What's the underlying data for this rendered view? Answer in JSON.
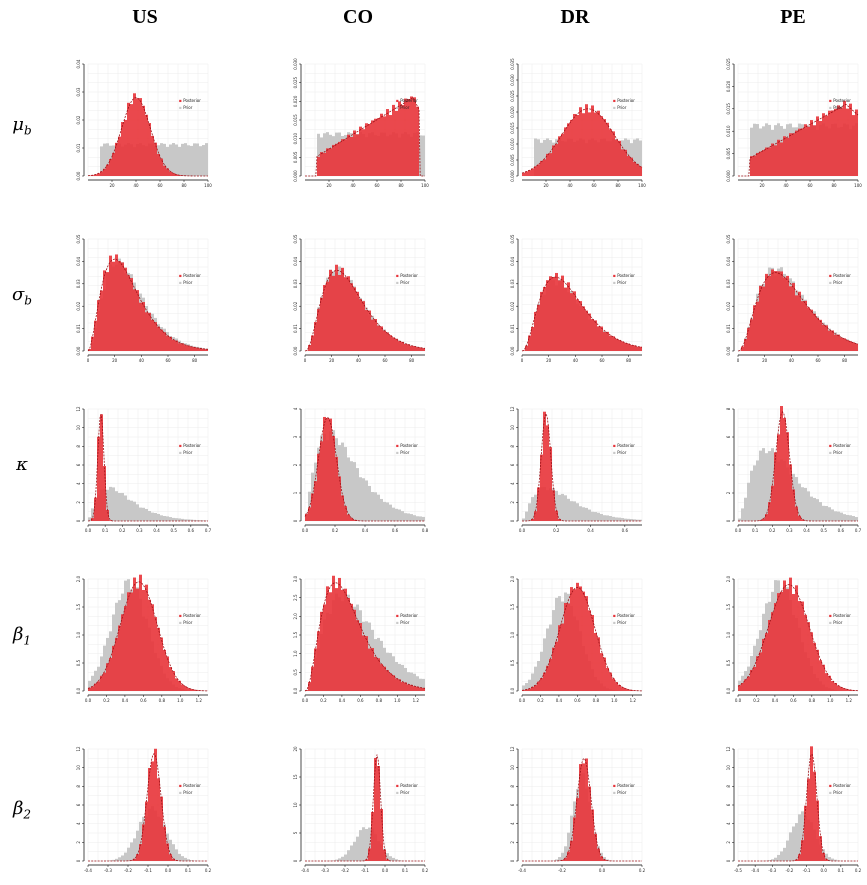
{
  "columns": [
    "US",
    "CO",
    "DR",
    "PE"
  ],
  "rows": [
    {
      "symbol": "μ",
      "sub": "b"
    },
    {
      "symbol": "σ",
      "sub": "b"
    },
    {
      "symbol": "κ",
      "sub": ""
    },
    {
      "symbol": "β",
      "sub": "1"
    },
    {
      "symbol": "β",
      "sub": "2"
    }
  ],
  "colors": {
    "posterior": "#e8343a",
    "prior": "#c8c8c8",
    "density": "#9b1016",
    "grid": "#ececec"
  },
  "legend": {
    "posterior": "Posterior",
    "prior": "Prior"
  },
  "chart_data": [
    {
      "type": "bar",
      "title": "",
      "panel": "mu_b-US",
      "xlim": [
        0,
        100
      ],
      "xticks": [
        "20",
        "40",
        "60",
        "80",
        "100"
      ],
      "ylim": [
        0,
        0.04
      ],
      "yticks": [
        "0.00",
        "0.01",
        "0.02",
        "0.03",
        "0.04"
      ],
      "series": [
        {
          "name": "Prior",
          "dist": "uniform",
          "range": [
            10,
            100
          ],
          "density": 0.011
        },
        {
          "name": "Posterior",
          "dist": "normal",
          "mean": 40,
          "sd": 12,
          "peak": 0.028
        }
      ]
    },
    {
      "type": "bar",
      "title": "",
      "panel": "mu_b-CO",
      "xlim": [
        0,
        100
      ],
      "xticks": [
        "20",
        "40",
        "60",
        "80",
        "100"
      ],
      "ylim": [
        0,
        0.03
      ],
      "yticks": [
        "0.000",
        "0.005",
        "0.010",
        "0.015",
        "0.020",
        "0.025",
        "0.030"
      ],
      "series": [
        {
          "name": "Prior",
          "dist": "uniform",
          "range": [
            10,
            100
          ],
          "density": 0.011
        },
        {
          "name": "Posterior",
          "dist": "ramp",
          "from": 10,
          "to": 95,
          "peak_at": 90,
          "peak": 0.021
        }
      ]
    },
    {
      "type": "bar",
      "title": "",
      "panel": "mu_b-DR",
      "xlim": [
        0,
        100
      ],
      "xticks": [
        "20",
        "40",
        "60",
        "80",
        "100"
      ],
      "ylim": [
        0,
        0.035
      ],
      "yticks": [
        "0.000",
        "0.005",
        "0.010",
        "0.015",
        "0.020",
        "0.025",
        "0.030",
        "0.035"
      ],
      "series": [
        {
          "name": "Prior",
          "dist": "uniform",
          "range": [
            10,
            100
          ],
          "density": 0.011
        },
        {
          "name": "Posterior",
          "dist": "normal",
          "mean": 55,
          "sd": 22,
          "peak": 0.021
        }
      ]
    },
    {
      "type": "bar",
      "title": "",
      "panel": "mu_b-PE",
      "xlim": [
        0,
        100
      ],
      "xticks": [
        "20",
        "40",
        "60",
        "80",
        "100"
      ],
      "ylim": [
        0,
        0.025
      ],
      "yticks": [
        "0.000",
        "0.005",
        "0.010",
        "0.015",
        "0.020",
        "0.025"
      ],
      "series": [
        {
          "name": "Prior",
          "dist": "uniform",
          "range": [
            10,
            100
          ],
          "density": 0.011
        },
        {
          "name": "Posterior",
          "dist": "ramp",
          "from": 10,
          "to": 100,
          "peak_at": 90,
          "peak": 0.016
        }
      ]
    },
    {
      "type": "bar",
      "title": "",
      "panel": "sigma_b-US",
      "xlim": [
        0,
        90
      ],
      "xticks": [
        "0",
        "20",
        "40",
        "60",
        "80"
      ],
      "ylim": [
        0,
        0.05
      ],
      "yticks": [
        "0.00",
        "0.01",
        "0.02",
        "0.03",
        "0.04",
        "0.05"
      ],
      "series": [
        {
          "name": "Prior",
          "dist": "gamma",
          "mode": 22,
          "scale": 10,
          "peak": 0.039
        },
        {
          "name": "Posterior",
          "dist": "gamma",
          "mode": 20,
          "scale": 10,
          "peak": 0.041
        }
      ]
    },
    {
      "type": "bar",
      "title": "",
      "panel": "sigma_b-CO",
      "xlim": [
        0,
        90
      ],
      "xticks": [
        "0",
        "20",
        "40",
        "60",
        "80"
      ],
      "ylim": [
        0,
        0.05
      ],
      "yticks": [
        "0.00",
        "0.01",
        "0.02",
        "0.03",
        "0.04",
        "0.05"
      ],
      "series": [
        {
          "name": "Prior",
          "dist": "gamma",
          "mode": 24,
          "scale": 10,
          "peak": 0.036
        },
        {
          "name": "Posterior",
          "dist": "gamma",
          "mode": 24,
          "scale": 10,
          "peak": 0.036
        }
      ]
    },
    {
      "type": "bar",
      "title": "",
      "panel": "sigma_b-DR",
      "xlim": [
        0,
        90
      ],
      "xticks": [
        "0",
        "20",
        "40",
        "60",
        "80"
      ],
      "ylim": [
        0,
        0.05
      ],
      "yticks": [
        "0.00",
        "0.01",
        "0.02",
        "0.03",
        "0.04",
        "0.05"
      ],
      "series": [
        {
          "name": "Prior",
          "dist": "gamma",
          "mode": 25,
          "scale": 11,
          "peak": 0.031
        },
        {
          "name": "Posterior",
          "dist": "gamma",
          "mode": 25,
          "scale": 11,
          "peak": 0.033
        }
      ]
    },
    {
      "type": "bar",
      "title": "",
      "panel": "sigma_b-PE",
      "xlim": [
        0,
        90
      ],
      "xticks": [
        "0",
        "20",
        "40",
        "60",
        "80"
      ],
      "ylim": [
        0,
        0.05
      ],
      "yticks": [
        "0.00",
        "0.01",
        "0.02",
        "0.03",
        "0.04",
        "0.05"
      ],
      "series": [
        {
          "name": "Prior",
          "dist": "gamma",
          "mode": 28,
          "scale": 12,
          "peak": 0.036
        },
        {
          "name": "Posterior",
          "dist": "gamma",
          "mode": 28,
          "scale": 12,
          "peak": 0.035
        }
      ]
    },
    {
      "type": "bar",
      "title": "",
      "panel": "kappa-US",
      "xlim": [
        0,
        0.7
      ],
      "xticks": [
        "0.0",
        "0.1",
        "0.2",
        "0.3",
        "0.4",
        "0.5",
        "0.6",
        "0.7"
      ],
      "ylim": [
        0,
        12
      ],
      "yticks": [
        "0",
        "2",
        "4",
        "6",
        "8",
        "10",
        "12"
      ],
      "series": [
        {
          "name": "Prior",
          "dist": "gamma",
          "mode": 0.12,
          "scale": 0.09,
          "peak": 3.5
        },
        {
          "name": "Posterior",
          "dist": "normal",
          "mean": 0.075,
          "sd": 0.018,
          "peak": 11.5
        }
      ]
    },
    {
      "type": "bar",
      "title": "",
      "panel": "kappa-CO",
      "xlim": [
        0,
        0.8
      ],
      "xticks": [
        "0.0",
        "0.2",
        "0.4",
        "0.6",
        "0.8"
      ],
      "ylim": [
        0,
        4
      ],
      "yticks": [
        "0",
        "1",
        "2",
        "3",
        "4"
      ],
      "series": [
        {
          "name": "Prior",
          "dist": "gamma",
          "mode": 0.16,
          "scale": 0.12,
          "peak": 3.1
        },
        {
          "name": "Posterior",
          "dist": "normal",
          "mean": 0.15,
          "sd": 0.06,
          "peak": 3.7
        }
      ]
    },
    {
      "type": "bar",
      "title": "",
      "panel": "kappa-DR",
      "xlim": [
        0,
        0.7
      ],
      "xticks": [
        "0.0",
        "0.2",
        "0.4",
        "0.6"
      ],
      "ylim": [
        0,
        12
      ],
      "yticks": [
        "0",
        "2",
        "4",
        "6",
        "8",
        "10",
        "12"
      ],
      "series": [
        {
          "name": "Prior",
          "dist": "gamma",
          "mode": 0.14,
          "scale": 0.1,
          "peak": 3.5
        },
        {
          "name": "Posterior",
          "dist": "normal",
          "mean": 0.14,
          "sd": 0.028,
          "peak": 11.5
        }
      ]
    },
    {
      "type": "bar",
      "title": "",
      "panel": "kappa-PE",
      "xlim": [
        0,
        0.7
      ],
      "xticks": [
        "0.0",
        "0.1",
        "0.2",
        "0.3",
        "0.4",
        "0.5",
        "0.6",
        "0.7"
      ],
      "ylim": [
        0,
        8
      ],
      "yticks": [
        "0",
        "2",
        "4",
        "6",
        "8"
      ],
      "series": [
        {
          "name": "Prior",
          "dist": "gamma",
          "mode": 0.17,
          "scale": 0.1,
          "peak": 5.0
        },
        {
          "name": "Posterior",
          "dist": "normal",
          "mean": 0.26,
          "sd": 0.04,
          "peak": 7.8
        }
      ]
    },
    {
      "type": "bar",
      "title": "",
      "panel": "beta1-US",
      "xlim": [
        0,
        1.3
      ],
      "xticks": [
        "0.0",
        "0.2",
        "0.4",
        "0.6",
        "0.8",
        "1.0",
        "1.2"
      ],
      "ylim": [
        0,
        2.0
      ],
      "yticks": [
        "0.0",
        "0.5",
        "1.0",
        "1.5",
        "2.0"
      ],
      "series": [
        {
          "name": "Prior",
          "dist": "normal",
          "mean": 0.45,
          "sd": 0.2,
          "peak": 1.9
        },
        {
          "name": "Posterior",
          "dist": "normal",
          "mean": 0.55,
          "sd": 0.2,
          "peak": 1.95
        }
      ]
    },
    {
      "type": "bar",
      "title": "",
      "panel": "beta1-CO",
      "xlim": [
        0,
        1.3
      ],
      "xticks": [
        "0.0",
        "0.2",
        "0.4",
        "0.6",
        "0.8",
        "1.0",
        "1.2"
      ],
      "ylim": [
        0,
        3.0
      ],
      "yticks": [
        "0.0",
        "0.5",
        "1.0",
        "1.5",
        "2.0",
        "2.5",
        "3.0"
      ],
      "series": [
        {
          "name": "Prior",
          "dist": "gamma",
          "mode": 0.4,
          "scale": 0.2,
          "peak": 2.5
        },
        {
          "name": "Posterior",
          "dist": "gamma",
          "mode": 0.33,
          "scale": 0.14,
          "peak": 2.9
        }
      ]
    },
    {
      "type": "bar",
      "title": "",
      "panel": "beta1-DR",
      "xlim": [
        0,
        1.3
      ],
      "xticks": [
        "0.0",
        "0.2",
        "0.4",
        "0.6",
        "0.8",
        "1.0",
        "1.2"
      ],
      "ylim": [
        0,
        2.0
      ],
      "yticks": [
        "0.0",
        "0.5",
        "1.0",
        "1.5",
        "2.0"
      ],
      "series": [
        {
          "name": "Prior",
          "dist": "normal",
          "mean": 0.45,
          "sd": 0.18,
          "peak": 1.7
        },
        {
          "name": "Posterior",
          "dist": "normal",
          "mean": 0.6,
          "sd": 0.19,
          "peak": 1.85
        }
      ]
    },
    {
      "type": "bar",
      "title": "",
      "panel": "beta1-PE",
      "xlim": [
        0,
        1.3
      ],
      "xticks": [
        "0.0",
        "0.2",
        "0.4",
        "0.6",
        "0.8",
        "1.0",
        "1.2"
      ],
      "ylim": [
        0,
        2.0
      ],
      "yticks": [
        "0.0",
        "0.5",
        "1.0",
        "1.5",
        "2.0"
      ],
      "series": [
        {
          "name": "Prior",
          "dist": "normal",
          "mean": 0.45,
          "sd": 0.2,
          "peak": 1.9
        },
        {
          "name": "Posterior",
          "dist": "normal",
          "mean": 0.55,
          "sd": 0.22,
          "peak": 1.9
        }
      ]
    },
    {
      "type": "bar",
      "title": "",
      "panel": "beta2-US",
      "xlim": [
        -0.4,
        0.2
      ],
      "xticks": [
        "-0.4",
        "-0.3",
        "-0.2",
        "-0.1",
        "0.0",
        "0.1",
        "0.2"
      ],
      "ylim": [
        0,
        12
      ],
      "yticks": [
        "0",
        "2",
        "4",
        "6",
        "8",
        "10",
        "12"
      ],
      "series": [
        {
          "name": "Prior",
          "dist": "normal",
          "mean": -0.08,
          "sd": 0.07,
          "peak": 5.5
        },
        {
          "name": "Posterior",
          "dist": "normal",
          "mean": -0.07,
          "sd": 0.035,
          "peak": 11.5
        }
      ]
    },
    {
      "type": "bar",
      "title": "",
      "panel": "beta2-CO",
      "xlim": [
        -0.4,
        0.2
      ],
      "xticks": [
        "-0.4",
        "-0.3",
        "-0.2",
        "-0.1",
        "0.0",
        "0.1",
        "0.2"
      ],
      "ylim": [
        0,
        20
      ],
      "yticks": [
        "0",
        "5",
        "10",
        "15",
        "20"
      ],
      "series": [
        {
          "name": "Prior",
          "dist": "normal",
          "mean": -0.09,
          "sd": 0.06,
          "peak": 6
        },
        {
          "name": "Posterior",
          "dist": "normal",
          "mean": -0.04,
          "sd": 0.018,
          "peak": 19
        }
      ]
    },
    {
      "type": "bar",
      "title": "",
      "panel": "beta2-DR",
      "xlim": [
        -0.4,
        0.2
      ],
      "xticks": [
        "-0.4",
        "-0.2",
        "0.0",
        "0.2"
      ],
      "ylim": [
        0,
        12
      ],
      "yticks": [
        "0",
        "2",
        "4",
        "6",
        "8",
        "10",
        "12"
      ],
      "series": [
        {
          "name": "Prior",
          "dist": "normal",
          "mean": -0.1,
          "sd": 0.045,
          "peak": 9
        },
        {
          "name": "Posterior",
          "dist": "normal",
          "mean": -0.09,
          "sd": 0.035,
          "peak": 11
        }
      ]
    },
    {
      "type": "bar",
      "title": "",
      "panel": "beta2-PE",
      "xlim": [
        -0.5,
        0.2
      ],
      "xticks": [
        "-0.5",
        "-0.4",
        "-0.3",
        "-0.2",
        "-0.1",
        "0.0",
        "0.1",
        "0.2"
      ],
      "ylim": [
        0,
        12
      ],
      "yticks": [
        "0",
        "2",
        "4",
        "6",
        "8",
        "10",
        "12"
      ],
      "series": [
        {
          "name": "Prior",
          "dist": "normal",
          "mean": -0.12,
          "sd": 0.07,
          "peak": 5
        },
        {
          "name": "Posterior",
          "dist": "normal",
          "mean": -0.07,
          "sd": 0.03,
          "peak": 11.5
        }
      ]
    }
  ]
}
